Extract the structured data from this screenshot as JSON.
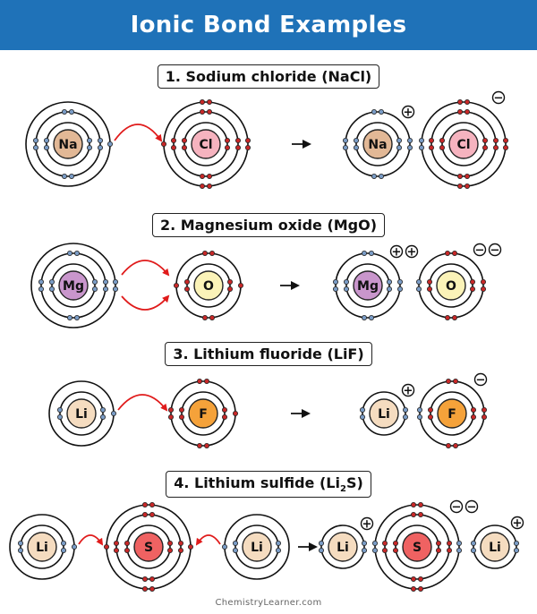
{
  "title": "Ionic Bond Examples",
  "credit": "ChemistryLearner.com",
  "sections": [
    {
      "pre": "1. Sodium chloride (NaCl)",
      "sub": "",
      "post": ""
    },
    {
      "pre": "2. Magnesium oxide (MgO)",
      "sub": "",
      "post": ""
    },
    {
      "pre": "3. Lithium fluoride (LiF)",
      "sub": "",
      "post": ""
    },
    {
      "pre": "4. Lithium sulfide (Li",
      "sub": "2",
      "post": "S)"
    }
  ],
  "atoms": {
    "Na": {
      "symbol": "Na",
      "color": "#e2b896"
    },
    "Cl": {
      "symbol": "Cl",
      "color": "#f6b3bf"
    },
    "Mg": {
      "symbol": "Mg",
      "color": "#c996cc"
    },
    "O": {
      "symbol": "O",
      "color": "#fbf3b8"
    },
    "Li": {
      "symbol": "Li",
      "color": "#f5dcc0"
    },
    "F": {
      "symbol": "F",
      "color": "#f5a23a"
    },
    "S": {
      "symbol": "S",
      "color": "#ef6262"
    }
  },
  "charges": {
    "plus": "+",
    "minus": "−"
  },
  "colors": {
    "banner": "#1f72b8",
    "electron_donor": "#7a9cc6",
    "electron_acceptor": "#c82828",
    "arrow": "#e01b1b"
  }
}
